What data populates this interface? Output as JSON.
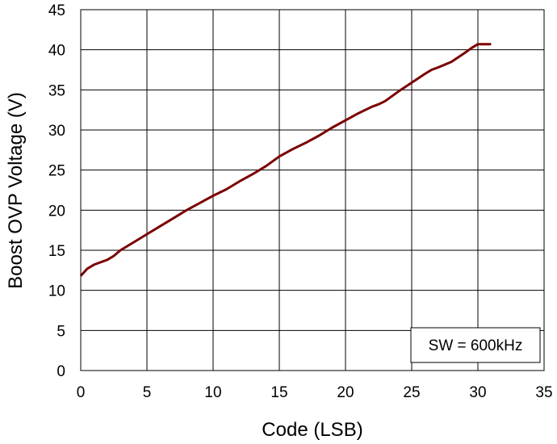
{
  "chart_data": {
    "type": "line",
    "xlabel": "Code (LSB)",
    "ylabel": "Boost OVP Voltage (V)",
    "xlim": [
      0,
      35
    ],
    "ylim": [
      0,
      45
    ],
    "xticks": [
      0,
      5,
      10,
      15,
      20,
      25,
      30,
      35
    ],
    "yticks": [
      0,
      5,
      10,
      15,
      20,
      25,
      30,
      35,
      40,
      45
    ],
    "grid": true,
    "annotation": "SW = 600kHz",
    "series": [
      {
        "color": "#7b0000",
        "x": [
          0,
          0.5,
          1,
          1.5,
          2,
          2.5,
          3,
          4,
          5,
          6,
          7,
          8,
          9,
          10,
          11,
          12,
          13,
          14,
          15,
          16,
          17,
          18,
          19,
          20,
          21,
          22,
          22.5,
          23,
          24,
          25,
          26,
          26.5,
          27,
          28,
          29,
          29.5,
          30,
          31
        ],
        "y": [
          11.8,
          12.7,
          13.2,
          13.5,
          13.8,
          14.3,
          15.0,
          16.0,
          17.0,
          18.0,
          19.0,
          20.0,
          20.9,
          21.8,
          22.6,
          23.6,
          24.5,
          25.5,
          26.7,
          27.6,
          28.4,
          29.3,
          30.3,
          31.2,
          32.1,
          32.9,
          33.2,
          33.6,
          34.8,
          35.9,
          37.0,
          37.5,
          37.8,
          38.5,
          39.6,
          40.2,
          40.7,
          40.7
        ]
      }
    ]
  }
}
